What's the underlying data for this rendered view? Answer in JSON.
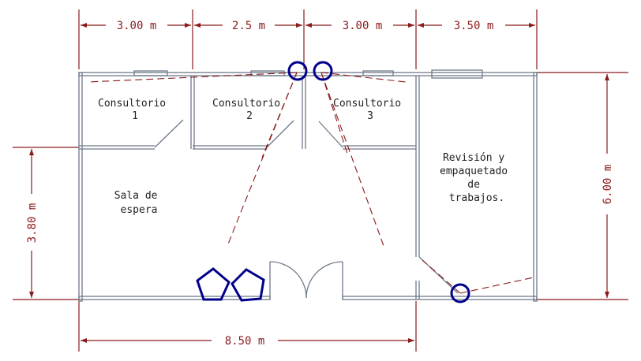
{
  "colors": {
    "wall": "#6e7a8a",
    "dimension": "#8b1a1a",
    "dash": "#8b1a1a",
    "device": "#00008b",
    "text": "#222222",
    "background": "#ffffff"
  },
  "dimensions": {
    "top": [
      "3.00 m",
      "2.5 m",
      "3.00 m",
      "3.50 m"
    ],
    "bottom": "8.50 m",
    "left": "3.80 m",
    "right": "6.00 m"
  },
  "rooms": {
    "consultorio1": [
      "Consultorio",
      "1"
    ],
    "consultorio2": [
      "Consultorio",
      "2"
    ],
    "consultorio3": [
      "Consultorio",
      "3"
    ],
    "sala": [
      "Sala de",
      "espera"
    ],
    "revision": [
      "Revisión y",
      "empaquetado",
      "de",
      "trabajos."
    ]
  },
  "devices": {
    "circle_icon": "circle-camera-icon",
    "pentagon_icon": "pentagon-sensor-icon"
  }
}
